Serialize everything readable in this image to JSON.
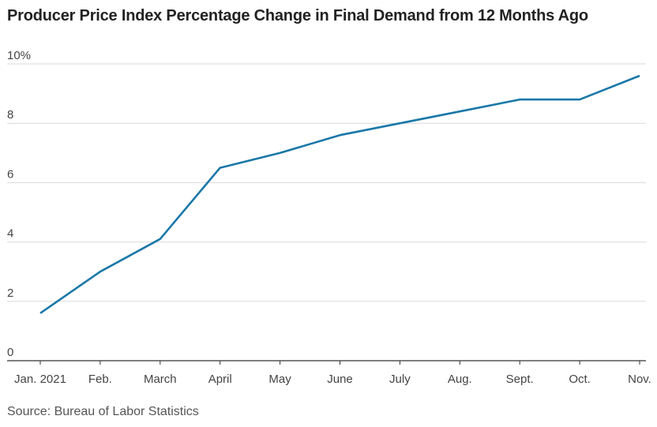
{
  "title": "Producer Price Index Percentage Change in Final Demand from 12 Months Ago",
  "source": "Source: Bureau of Labor Statistics",
  "colors": {
    "line": "#1a78a8",
    "grid": "#d9d9d9",
    "axis": "#333333"
  },
  "chart_data": {
    "type": "line",
    "title": "Producer Price Index Percentage Change in Final Demand from 12 Months Ago",
    "categories": [
      "Jan. 2021",
      "Feb.",
      "March",
      "April",
      "May",
      "June",
      "July",
      "Aug.",
      "Sept.",
      "Oct.",
      "Nov."
    ],
    "series": [
      {
        "values": [
          1.6,
          3.0,
          4.1,
          6.5,
          7.0,
          7.6,
          8.0,
          8.4,
          8.8,
          8.8,
          9.6
        ]
      }
    ],
    "yticks": [
      0,
      2,
      4,
      6,
      8,
      10
    ],
    "ytick_labels": [
      "0",
      "2",
      "4",
      "6",
      "8",
      "10%"
    ],
    "ylim": [
      0,
      10
    ],
    "grid": true,
    "legend": "none",
    "xlabel": "",
    "ylabel": ""
  }
}
